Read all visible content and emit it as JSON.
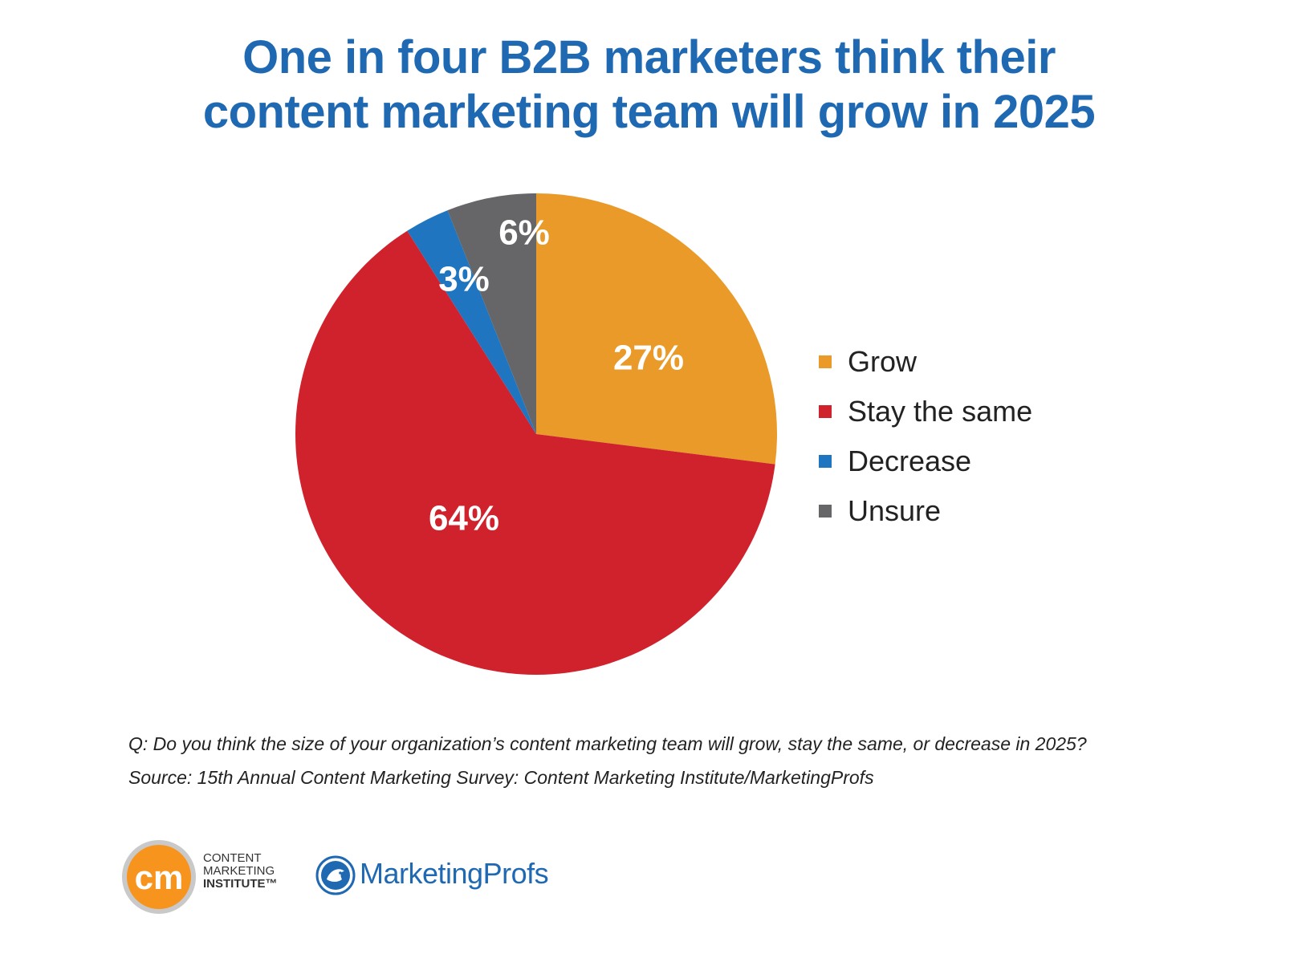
{
  "title_lines": [
    "One in four B2B marketers think their",
    "content marketing team will grow in 2025"
  ],
  "chart_data": {
    "type": "pie",
    "title": "One in four B2B marketers think their content marketing team will grow in 2025",
    "slices": [
      {
        "label": "Grow",
        "value": 27,
        "display": "27%",
        "color": "#e99a28"
      },
      {
        "label": "Stay the same",
        "value": 64,
        "display": "64%",
        "color": "#d0222d"
      },
      {
        "label": "Decrease",
        "value": 3,
        "display": "3%",
        "color": "#1f75c0"
      },
      {
        "label": "Unsure",
        "value": 6,
        "display": "6%",
        "color": "#666669"
      }
    ],
    "legend_position": "right"
  },
  "notes": {
    "question": "Q: Do you think the size of your organization’s content marketing team will grow, stay the same, or decrease in 2025?",
    "source": "Source: 15th Annual Content Marketing Survey: Content Marketing Institute/MarketingProfs"
  },
  "logos": {
    "cmi": {
      "mark": "cm",
      "lines": [
        "CONTENT",
        "MARKETING",
        "INSTITUTE™"
      ],
      "color": "#f7941d"
    },
    "marketingprofs": {
      "name": "MarketingProfs",
      "color": "#1f69b3"
    }
  }
}
